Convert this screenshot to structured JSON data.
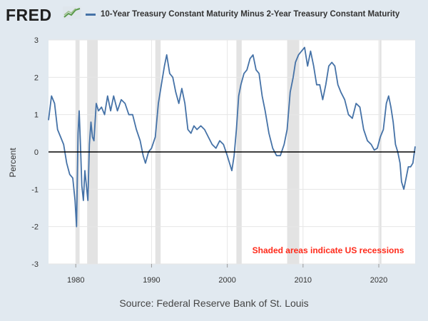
{
  "brand": {
    "logo_text": "FRED",
    "logo_icon": "line-chart-icon"
  },
  "colors": {
    "series": "#4572a7",
    "recession": "#e3e3e3",
    "note": "#ff2a1a",
    "zero_line": "#000000"
  },
  "chart_data": {
    "type": "line",
    "title": "10-Year Treasury Constant Maturity Minus 2-Year Treasury Constant Maturity",
    "xlabel": "",
    "ylabel": "Percent",
    "xlim": [
      1976.4,
      2024.8
    ],
    "ylim": [
      -3,
      3
    ],
    "x_ticks": [
      1980,
      1990,
      2000,
      2010,
      2020
    ],
    "x_tick_labels": [
      "1980",
      "1990",
      "2000",
      "2010",
      "2020"
    ],
    "y_ticks": [
      -3,
      -2,
      -1,
      0,
      1,
      2,
      3
    ],
    "y_tick_labels": [
      "-3",
      "-2",
      "-1",
      "0",
      "1",
      "2",
      "3"
    ],
    "grid": true,
    "zero_line": 0,
    "recessions": [
      [
        1980.0,
        1980.5
      ],
      [
        1981.5,
        1982.9
      ],
      [
        1990.5,
        1991.2
      ],
      [
        2001.2,
        2001.9
      ],
      [
        2007.9,
        2009.5
      ],
      [
        2020.1,
        2020.35
      ]
    ],
    "annotation": "Shaded areas indicate US recessions",
    "source": "Source: Federal Reserve Bank of St. Louis",
    "series": [
      {
        "name": "10-Year Treasury Constant Maturity Minus 2-Year Treasury Constant Maturity",
        "x": [
          1976.4,
          1976.8,
          1977.2,
          1977.6,
          1978.0,
          1978.4,
          1978.8,
          1979.2,
          1979.6,
          1979.9,
          1980.1,
          1980.3,
          1980.45,
          1980.6,
          1980.8,
          1981.0,
          1981.2,
          1981.4,
          1981.6,
          1981.8,
          1982.0,
          1982.2,
          1982.4,
          1982.7,
          1983.0,
          1983.4,
          1983.8,
          1984.2,
          1984.6,
          1985.0,
          1985.5,
          1986.0,
          1986.5,
          1987.0,
          1987.5,
          1988.0,
          1988.5,
          1988.9,
          1989.2,
          1989.6,
          1990.0,
          1990.5,
          1990.9,
          1991.3,
          1991.7,
          1992.0,
          1992.4,
          1992.8,
          1993.2,
          1993.6,
          1994.0,
          1994.4,
          1994.8,
          1995.2,
          1995.6,
          1996.0,
          1996.5,
          1997.0,
          1997.5,
          1998.0,
          1998.5,
          1999.0,
          1999.5,
          2000.0,
          2000.3,
          2000.6,
          2000.9,
          2001.2,
          2001.5,
          2001.8,
          2002.2,
          2002.6,
          2003.0,
          2003.4,
          2003.8,
          2004.2,
          2004.6,
          2005.0,
          2005.5,
          2006.0,
          2006.5,
          2007.0,
          2007.5,
          2007.9,
          2008.3,
          2008.7,
          2009.0,
          2009.4,
          2009.8,
          2010.2,
          2010.6,
          2011.0,
          2011.4,
          2011.8,
          2012.2,
          2012.6,
          2013.0,
          2013.4,
          2013.8,
          2014.2,
          2014.6,
          2015.0,
          2015.5,
          2016.0,
          2016.5,
          2017.0,
          2017.5,
          2018.0,
          2018.5,
          2019.0,
          2019.4,
          2019.8,
          2020.2,
          2020.6,
          2021.0,
          2021.3,
          2021.6,
          2021.9,
          2022.2,
          2022.5,
          2022.8,
          2023.0,
          2023.3,
          2023.6,
          2023.9,
          2024.2,
          2024.5,
          2024.8
        ],
        "y": [
          0.85,
          1.5,
          1.3,
          0.6,
          0.4,
          0.2,
          -0.3,
          -0.6,
          -0.7,
          -1.3,
          -2.0,
          0.5,
          1.1,
          0.3,
          -0.9,
          -1.3,
          -0.5,
          -0.9,
          -1.3,
          0.2,
          0.8,
          0.4,
          0.3,
          1.3,
          1.1,
          1.2,
          1.0,
          1.5,
          1.1,
          1.5,
          1.1,
          1.4,
          1.3,
          1.0,
          1.0,
          0.6,
          0.3,
          -0.1,
          -0.3,
          0.0,
          0.1,
          0.4,
          1.3,
          1.8,
          2.3,
          2.6,
          2.1,
          2.0,
          1.6,
          1.3,
          1.7,
          1.3,
          0.6,
          0.5,
          0.7,
          0.6,
          0.7,
          0.6,
          0.4,
          0.2,
          0.1,
          0.3,
          0.2,
          -0.1,
          -0.3,
          -0.5,
          -0.1,
          0.6,
          1.5,
          1.8,
          2.1,
          2.2,
          2.5,
          2.6,
          2.2,
          2.1,
          1.5,
          1.1,
          0.5,
          0.1,
          -0.1,
          -0.1,
          0.2,
          0.6,
          1.6,
          2.0,
          2.4,
          2.6,
          2.7,
          2.8,
          2.3,
          2.7,
          2.3,
          1.8,
          1.8,
          1.4,
          1.8,
          2.3,
          2.4,
          2.3,
          1.8,
          1.6,
          1.4,
          1.0,
          0.9,
          1.3,
          1.2,
          0.6,
          0.3,
          0.2,
          0.05,
          0.1,
          0.4,
          0.6,
          1.3,
          1.5,
          1.2,
          0.8,
          0.2,
          0.0,
          -0.3,
          -0.8,
          -1.0,
          -0.7,
          -0.4,
          -0.4,
          -0.3,
          0.15
        ]
      }
    ]
  }
}
